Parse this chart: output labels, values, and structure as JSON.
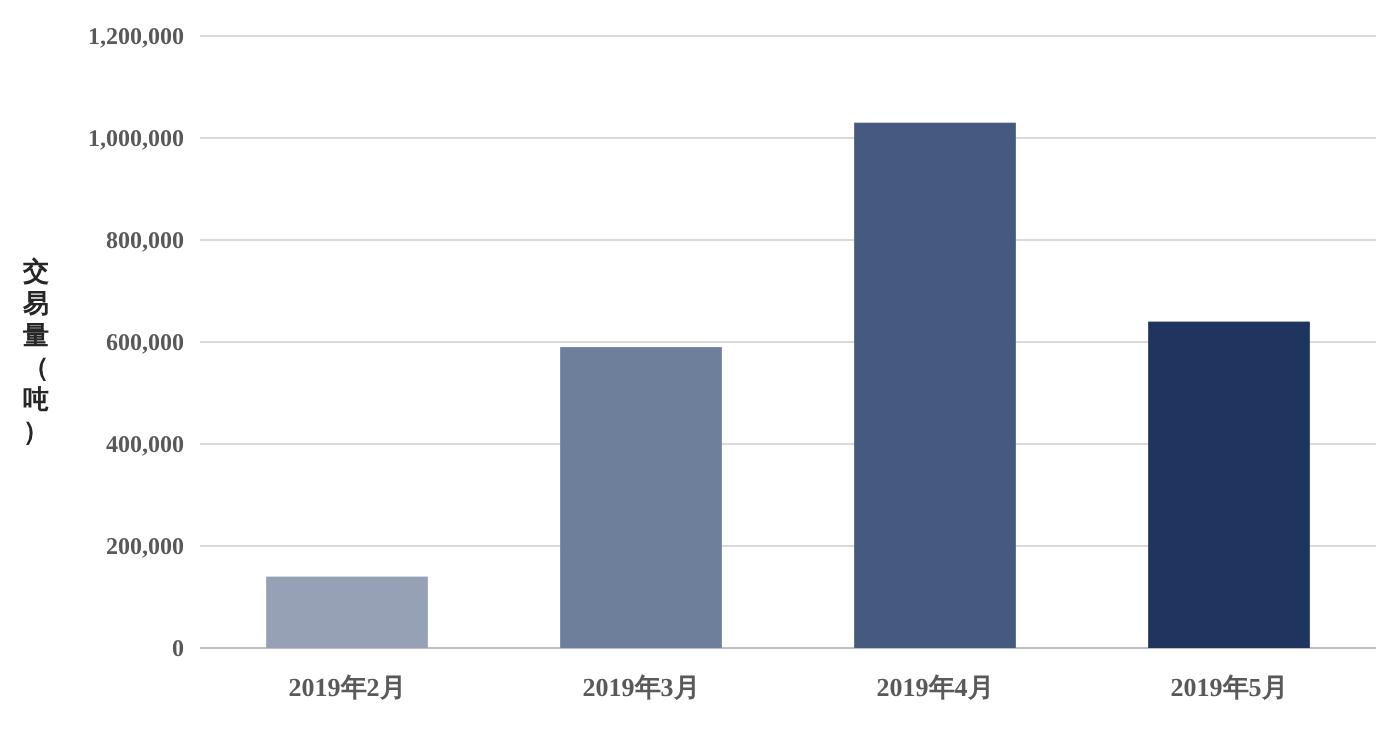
{
  "chart_data": {
    "type": "bar",
    "ylabel": "交易量（吨）",
    "categories": [
      "2019年2月",
      "2019年3月",
      "2019年4月",
      "2019年5月"
    ],
    "values": [
      140000,
      590000,
      1030000,
      640000
    ],
    "colors": [
      "#97a1b5",
      "#6e7f9c",
      "#465a7f",
      "#1f345f"
    ],
    "ylim": [
      0,
      1200000
    ],
    "yticks": [
      0,
      {
        "value": 200000,
        "label": "200,000"
      },
      {
        "value": 400000,
        "label": "400,000"
      },
      {
        "value": 600000,
        "label": "600,000"
      },
      {
        "value": 800000,
        "label": "800,000"
      },
      {
        "value": 1000000,
        "label": "1,000,000"
      },
      {
        "value": 1200000,
        "label": "1,200,000"
      }
    ],
    "grid": "y"
  }
}
